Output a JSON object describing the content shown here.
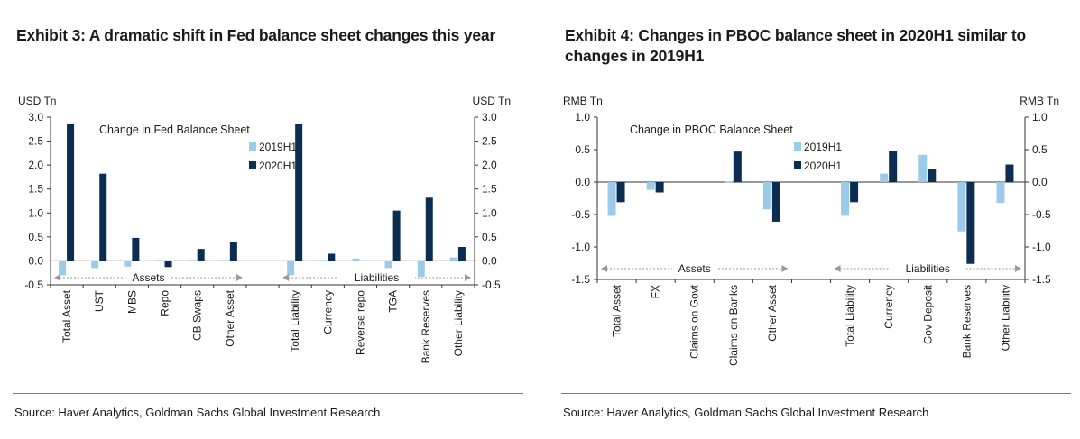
{
  "chart_data": [
    {
      "type": "bar",
      "exhibit_title": "Exhibit 3: A dramatic shift in Fed balance sheet changes this year",
      "inner_title": "Change in Fed Balance Sheet",
      "y_label_left": "USD Tn",
      "y_label_right": "USD Tn",
      "ylim": [
        -0.5,
        3.0
      ],
      "yticks": [
        "3.0",
        "2.5",
        "2.0",
        "1.5",
        "1.0",
        "0.5",
        "0.0",
        "-0.5"
      ],
      "ytick_values": [
        3.0,
        2.5,
        2.0,
        1.5,
        1.0,
        0.5,
        0.0,
        -0.5
      ],
      "categories": [
        "Total Asset",
        "UST",
        "MBS",
        "Repo",
        "CB Swaps",
        "Other Asset",
        "",
        "Total Liability",
        "Currency",
        "Reverse repo",
        "TGA",
        "Bank Reserves",
        "Other Liability"
      ],
      "series": [
        {
          "name": "2019H1",
          "color": "#9ccbea",
          "values": [
            -0.3,
            -0.15,
            -0.12,
            0.02,
            0.02,
            0.02,
            null,
            -0.3,
            0.02,
            0.05,
            -0.15,
            -0.33,
            0.07
          ]
        },
        {
          "name": "2020H1",
          "color": "#0b2d52",
          "values": [
            2.85,
            1.82,
            0.48,
            -0.13,
            0.25,
            0.4,
            null,
            2.85,
            0.15,
            0.0,
            1.05,
            1.32,
            0.29
          ]
        }
      ],
      "groups": [
        {
          "label": "Assets",
          "from": 0,
          "to": 5
        },
        {
          "label": "Liabilities",
          "from": 7,
          "to": 12
        }
      ],
      "legend_position": "top-center",
      "grid": false,
      "source": "Source: Haver Analytics, Goldman Sachs Global Investment Research"
    },
    {
      "type": "bar",
      "exhibit_title_line1": "Exhibit 4: Changes in PBOC balance sheet in 2020H1 similar to",
      "exhibit_title_line2": "changes in 2019H1",
      "inner_title": "Change in PBOC Balance Sheet",
      "y_label_left": "RMB Tn",
      "y_label_right": "RMB Tn",
      "ylim": [
        -1.5,
        1.0
      ],
      "yticks": [
        "1.0",
        "0.5",
        "0.0",
        "-0.5",
        "-1.0",
        "-1.5"
      ],
      "ytick_values": [
        1.0,
        0.5,
        0.0,
        -0.5,
        -1.0,
        -1.5
      ],
      "categories": [
        "Total Asset",
        "FX",
        "Claims on Govt",
        "Claims on Banks",
        "Other Asset",
        "",
        "Total Liability",
        "Currency",
        "Gov Deposit",
        "Bank Reserves",
        "Other Liability"
      ],
      "series": [
        {
          "name": "2019H1",
          "color": "#9ccbea",
          "values": [
            -0.52,
            -0.12,
            0.0,
            0.01,
            -0.42,
            null,
            -0.52,
            0.13,
            0.42,
            -0.76,
            -0.32
          ]
        },
        {
          "name": "2020H1",
          "color": "#0b2d52",
          "values": [
            -0.31,
            -0.16,
            0.0,
            0.47,
            -0.61,
            null,
            -0.31,
            0.48,
            0.2,
            -1.26,
            0.27
          ]
        }
      ],
      "groups": [
        {
          "label": "Assets",
          "from": 0,
          "to": 4
        },
        {
          "label": "Liabilities",
          "from": 6,
          "to": 10
        }
      ],
      "legend_position": "top-center",
      "grid": false,
      "source": "Source: Haver Analytics, Goldman Sachs Global Investment Research"
    }
  ]
}
